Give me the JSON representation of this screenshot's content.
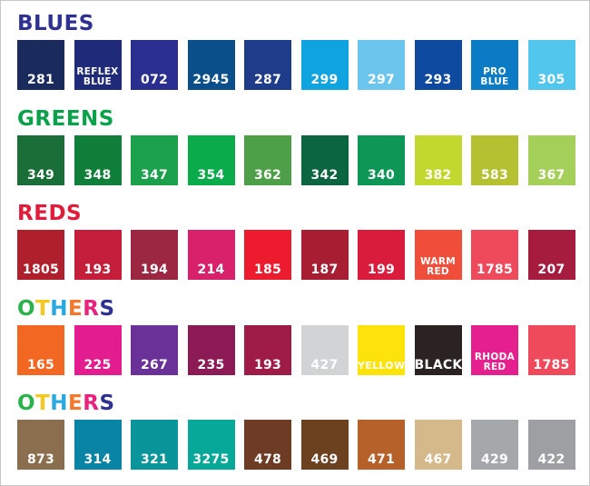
{
  "sections": [
    {
      "title": "BLUES",
      "title_colors": [
        "#2e3192"
      ],
      "swatches": [
        {
          "label": "281",
          "color": "#1b2a5c"
        },
        {
          "label": "REFLEX\nBLUE",
          "color": "#1f2b79"
        },
        {
          "label": "072",
          "color": "#2a2f8f"
        },
        {
          "label": "2945",
          "color": "#0b4f8a"
        },
        {
          "label": "287",
          "color": "#1f3c8a"
        },
        {
          "label": "299",
          "color": "#0fa3e0"
        },
        {
          "label": "297",
          "color": "#6cc5ed"
        },
        {
          "label": "293",
          "color": "#0d4aa0"
        },
        {
          "label": "PRO\nBLUE",
          "color": "#0a7bc4"
        },
        {
          "label": "305",
          "color": "#52c6ec"
        }
      ]
    },
    {
      "title": "GREENS",
      "title_colors": [
        "#0aa14b"
      ],
      "swatches": [
        {
          "label": "349",
          "color": "#1a6e37"
        },
        {
          "label": "348",
          "color": "#0f7f3a"
        },
        {
          "label": "347",
          "color": "#1ba04b"
        },
        {
          "label": "354",
          "color": "#0aab4b"
        },
        {
          "label": "362",
          "color": "#4da048"
        },
        {
          "label": "342",
          "color": "#0a6540"
        },
        {
          "label": "340",
          "color": "#0d9656"
        },
        {
          "label": "382",
          "color": "#c3d82e"
        },
        {
          "label": "583",
          "color": "#b5c131"
        },
        {
          "label": "367",
          "color": "#a4cf58"
        }
      ]
    },
    {
      "title": "REDS",
      "title_colors": [
        "#e31b3b"
      ],
      "swatches": [
        {
          "label": "1805",
          "color": "#b0202c"
        },
        {
          "label": "193",
          "color": "#c41e3a"
        },
        {
          "label": "194",
          "color": "#9b2743"
        },
        {
          "label": "214",
          "color": "#d8206b"
        },
        {
          "label": "185",
          "color": "#ec1c2e"
        },
        {
          "label": "187",
          "color": "#a71d31"
        },
        {
          "label": "199",
          "color": "#d91c3c"
        },
        {
          "label": "WARM\nRED",
          "color": "#f04e3b"
        },
        {
          "label": "1785",
          "color": "#ee4a5c"
        },
        {
          "label": "207",
          "color": "#a51c3e"
        }
      ]
    },
    {
      "title": "OTHERS",
      "title_colors": [
        "#2ab34b",
        "#f6c81e",
        "#2aa8e0",
        "#f3782b",
        "#e7237d",
        "#2e3192"
      ],
      "swatches": [
        {
          "label": "165",
          "color": "#f26722"
        },
        {
          "label": "225",
          "color": "#e31c8f"
        },
        {
          "label": "267",
          "color": "#6a3198"
        },
        {
          "label": "235",
          "color": "#8b1a55"
        },
        {
          "label": "193",
          "color": "#9e1b47"
        },
        {
          "label": "427",
          "color": "#d1d3d4"
        },
        {
          "label": "YELLOW",
          "color": "#fde30a"
        },
        {
          "label": "BLACK",
          "color": "#2a2322"
        },
        {
          "label": "RHODA\nRED",
          "color": "#e5208e"
        },
        {
          "label": "1785",
          "color": "#ee4a5c"
        }
      ]
    },
    {
      "title": "OTHERS",
      "title_colors": [
        "#2ab34b",
        "#f6c81e",
        "#2aa8e0",
        "#f3782b",
        "#e7237d",
        "#2e3192"
      ],
      "swatches": [
        {
          "label": "873",
          "color": "#8b6e4e"
        },
        {
          "label": "314",
          "color": "#0a84a4"
        },
        {
          "label": "321",
          "color": "#0a959b"
        },
        {
          "label": "3275",
          "color": "#06a89a"
        },
        {
          "label": "478",
          "color": "#6e3c25"
        },
        {
          "label": "469",
          "color": "#6c4120"
        },
        {
          "label": "471",
          "color": "#b7612a"
        },
        {
          "label": "467",
          "color": "#d5b98b"
        },
        {
          "label": "429",
          "color": "#a5a8ab"
        },
        {
          "label": "422",
          "color": "#9d9fa2"
        }
      ]
    }
  ]
}
